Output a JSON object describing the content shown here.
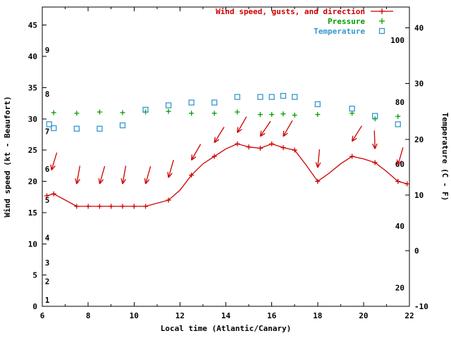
{
  "chart_data": {
    "type": "line",
    "xlabel": "Local time (Atlantic/Canary)",
    "ylabel_left": "Wind speed (kt - Beaufort)",
    "ylabel_right": "Temperature (C - F)",
    "x_range": [
      6,
      22
    ],
    "y_left_range": [
      0,
      47.9
    ],
    "y_right_range": [
      -10,
      43.75
    ],
    "x_ticks": [
      6,
      8,
      10,
      12,
      14,
      16,
      18,
      20,
      22
    ],
    "x_minor_ticks": [
      7,
      9,
      11,
      13,
      15,
      17,
      19,
      21
    ],
    "y_left_ticks": [
      0,
      5,
      10,
      15,
      20,
      25,
      30,
      35,
      40,
      45
    ],
    "y_right_ticks": [
      -10,
      0,
      10,
      20,
      30,
      40
    ],
    "beaufort_labels": [
      [
        1,
        1
      ],
      [
        2,
        4
      ],
      [
        3,
        7
      ],
      [
        4,
        11
      ],
      [
        5,
        17
      ],
      [
        6,
        22
      ],
      [
        7,
        28
      ],
      [
        8,
        34
      ],
      [
        9,
        41
      ]
    ],
    "fahrenheit_labels": [
      [
        20,
        -6.67
      ],
      [
        40,
        4.44
      ],
      [
        60,
        15.56
      ],
      [
        80,
        26.67
      ],
      [
        100,
        37.78
      ]
    ],
    "grid": false,
    "legend_position": "top-right-inside",
    "legend": [
      {
        "label": "Wind speed, gusts, and direction",
        "color": "#cc0000",
        "symbol": "line-plus"
      },
      {
        "label": "Pressure",
        "color": "#00a000",
        "symbol": "plus"
      },
      {
        "label": "Temperature",
        "color": "#3399cc",
        "symbol": "open-square"
      }
    ],
    "colors": {
      "wind": "#cc0000",
      "pressure": "#00a000",
      "temperature": "#3399cc",
      "axis": "#000000",
      "background": "#ffffff"
    },
    "wind_speed_kt": {
      "axis": "left",
      "points": [
        [
          6.2,
          17.7
        ],
        [
          6.5,
          18.0
        ],
        [
          7.5,
          16.0
        ],
        [
          8.0,
          16.0
        ],
        [
          8.5,
          16.0
        ],
        [
          9.0,
          16.0
        ],
        [
          9.5,
          16.0
        ],
        [
          10.0,
          16.0
        ],
        [
          10.5,
          16.0
        ],
        [
          11.5,
          17.0
        ],
        [
          12.0,
          18.6
        ],
        [
          12.5,
          21.0
        ],
        [
          13.0,
          22.8
        ],
        [
          13.5,
          24.0
        ],
        [
          14.0,
          25.2
        ],
        [
          14.5,
          26.0
        ],
        [
          15.0,
          25.5
        ],
        [
          15.5,
          25.3
        ],
        [
          16.0,
          26.0
        ],
        [
          16.5,
          25.4
        ],
        [
          17.0,
          25.0
        ],
        [
          17.5,
          22.6
        ],
        [
          18.0,
          20.0
        ],
        [
          18.5,
          21.3
        ],
        [
          19.0,
          22.8
        ],
        [
          19.5,
          24.0
        ],
        [
          20.0,
          23.6
        ],
        [
          20.5,
          23.0
        ],
        [
          21.0,
          21.6
        ],
        [
          21.5,
          20.0
        ],
        [
          21.9,
          19.6
        ]
      ],
      "markers": [
        [
          6.2,
          17.7
        ],
        [
          6.5,
          18.0
        ],
        [
          7.5,
          16.0
        ],
        [
          8.0,
          16.0
        ],
        [
          8.5,
          16.0
        ],
        [
          9.0,
          16.0
        ],
        [
          9.5,
          16.0
        ],
        [
          10.0,
          16.0
        ],
        [
          10.5,
          16.0
        ],
        [
          11.5,
          17.0
        ],
        [
          12.5,
          21.0
        ],
        [
          13.5,
          24.0
        ],
        [
          14.5,
          26.0
        ],
        [
          15.0,
          25.5
        ],
        [
          15.5,
          25.3
        ],
        [
          16.0,
          26.0
        ],
        [
          16.5,
          25.4
        ],
        [
          17.0,
          25.0
        ],
        [
          18.0,
          20.0
        ],
        [
          19.5,
          24.0
        ],
        [
          20.5,
          23.0
        ],
        [
          21.5,
          20.0
        ],
        [
          21.9,
          19.6
        ]
      ]
    },
    "direction_arrows": {
      "axis": "left",
      "note": "red arrows above wind curve; [hour, tip_kt, pointing_deg (180=down)]",
      "points": [
        [
          6.4,
          21.8,
          197
        ],
        [
          7.5,
          19.6,
          190
        ],
        [
          8.5,
          19.6,
          196
        ],
        [
          9.5,
          19.6,
          190
        ],
        [
          10.5,
          19.6,
          196
        ],
        [
          11.5,
          20.6,
          196
        ],
        [
          12.5,
          23.4,
          210
        ],
        [
          13.5,
          26.2,
          212
        ],
        [
          14.5,
          27.8,
          210
        ],
        [
          15.5,
          27.2,
          214
        ],
        [
          16.5,
          27.2,
          210
        ],
        [
          18.0,
          22.2,
          186
        ],
        [
          19.5,
          26.4,
          212
        ],
        [
          20.5,
          25.2,
          178
        ],
        [
          21.5,
          22.6,
          196
        ]
      ]
    },
    "pressure": {
      "axis": "left-display-units",
      "points": [
        [
          6.5,
          31.0
        ],
        [
          7.5,
          30.9
        ],
        [
          8.5,
          31.1
        ],
        [
          9.5,
          31.0
        ],
        [
          10.5,
          31.1
        ],
        [
          11.5,
          31.2
        ],
        [
          12.5,
          30.9
        ],
        [
          13.5,
          30.9
        ],
        [
          14.5,
          31.1
        ],
        [
          15.5,
          30.7
        ],
        [
          16.0,
          30.7
        ],
        [
          16.5,
          30.8
        ],
        [
          17.0,
          30.6
        ],
        [
          18.0,
          30.7
        ],
        [
          19.5,
          30.9
        ],
        [
          20.5,
          30.0
        ],
        [
          21.5,
          30.4
        ]
      ]
    },
    "temperature_c": {
      "axis": "right",
      "points": [
        [
          6.3,
          22.7
        ],
        [
          6.5,
          22.0
        ],
        [
          7.5,
          21.9
        ],
        [
          8.5,
          21.9
        ],
        [
          9.5,
          22.5
        ],
        [
          10.5,
          25.3
        ],
        [
          11.5,
          26.1
        ],
        [
          12.5,
          26.6
        ],
        [
          13.5,
          26.6
        ],
        [
          14.5,
          27.6
        ],
        [
          15.5,
          27.6
        ],
        [
          16.0,
          27.6
        ],
        [
          16.5,
          27.8
        ],
        [
          17.0,
          27.6
        ],
        [
          18.0,
          26.3
        ],
        [
          19.5,
          25.5
        ],
        [
          20.5,
          24.2
        ],
        [
          21.5,
          22.7
        ]
      ]
    }
  }
}
